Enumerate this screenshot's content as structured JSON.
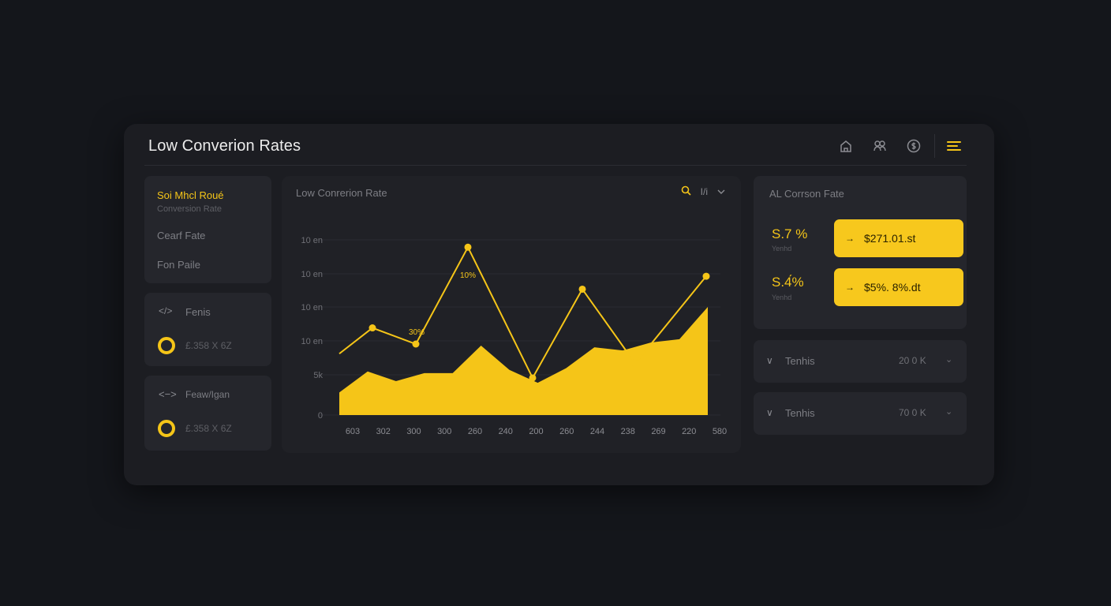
{
  "header": {
    "title": "Low Converion Rates",
    "icons": [
      "home-icon",
      "users-icon",
      "dollar-icon",
      "menu-icon"
    ]
  },
  "left_panel": {
    "menu": {
      "active_label": "Soi Mhcl Roué",
      "active_sub": "Conversion Rate",
      "item2": "Cearf Fate",
      "item3": "Fon Paile"
    },
    "feature1": {
      "label": "Fenis",
      "icon": "code-icon",
      "value": "£.358 X 6Z"
    },
    "feature2": {
      "label": "Feaw/Igan",
      "icon": "swap-icon",
      "value": "£.358 X 6Z"
    }
  },
  "chart": {
    "title": "Low Conrerion Rate",
    "tool_label": "I/i",
    "annotations": {
      "peak": "10%",
      "low": "30%"
    },
    "chart_data": {
      "type": "line",
      "x_tick_labels": [
        "603",
        "302",
        "300",
        "300",
        "260",
        "240",
        "200",
        "260",
        "244",
        "238",
        "269",
        "220",
        "580"
      ],
      "y_tick_labels": [
        "0",
        "5k",
        "10 en",
        "10 en",
        "10 en",
        "10 en"
      ],
      "series": [
        {
          "type": "line",
          "values": [
            3.8,
            5.4,
            4.4,
            10.4,
            2.3,
            7.8,
            3.2,
            8.6
          ]
        },
        {
          "type": "area",
          "values": [
            1.4,
            2.7,
            2.1,
            2.6,
            2.6,
            4.3,
            2.8,
            2.0,
            2.9,
            4.2,
            4.0,
            4.5,
            4.7,
            6.7
          ]
        }
      ],
      "ylim": [
        0,
        11
      ],
      "grid": true
    }
  },
  "stats": {
    "title": "AL Corrson Fate",
    "stat1": {
      "value": "S.7 %",
      "sub": "Yenhd",
      "pill": "$271.01.st"
    },
    "stat2": {
      "value": "S.4́%",
      "sub": "Yenhd",
      "pill": "$5%. 8%.dt"
    }
  },
  "trends": [
    {
      "label": "Tenhis",
      "value": "20 0 K"
    },
    {
      "label": "Tenhis",
      "value": "70 0 K"
    }
  ],
  "colors": {
    "accent": "#f5c518",
    "panel": "#1c1d22",
    "card": "#25262c",
    "background": "#14161b"
  }
}
